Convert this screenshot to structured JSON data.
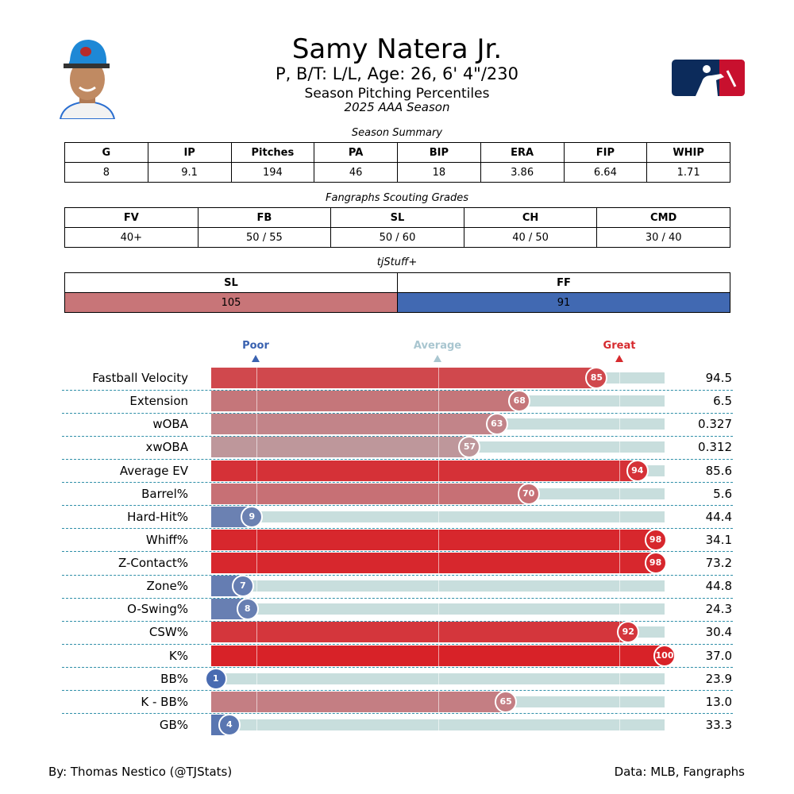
{
  "header": {
    "name": "Samy Natera Jr.",
    "info": "P, B/T: L/L, Age: 26, 6' 4\"/230",
    "subtitle": "Season Pitching Percentiles",
    "season": "2025 AAA Season"
  },
  "season_summary": {
    "title": "Season Summary",
    "headers": [
      "G",
      "IP",
      "Pitches",
      "PA",
      "BIP",
      "ERA",
      "FIP",
      "WHIP"
    ],
    "values": [
      "8",
      "9.1",
      "194",
      "46",
      "18",
      "3.86",
      "6.64",
      "1.71"
    ]
  },
  "scouting_grades": {
    "title": "Fangraphs Scouting Grades",
    "headers": [
      "FV",
      "FB",
      "SL",
      "CH",
      "CMD"
    ],
    "values": [
      "40+",
      "50 / 55",
      "50 / 60",
      "40 / 50",
      "30 / 40"
    ]
  },
  "tjstuff": {
    "title": "tjStuff+",
    "headers": [
      "SL",
      "FF"
    ],
    "values": [
      "105",
      "91"
    ],
    "colors": [
      "#c87578",
      "#4169b2"
    ]
  },
  "legend": {
    "poor": "Poor",
    "average": "Average",
    "great": "Great",
    "poor_color": "#3a62b0",
    "average_color": "#a9c6d0",
    "great_color": "#d62a2e"
  },
  "chart_data": {
    "type": "bar",
    "title": "Season Pitching Percentiles",
    "xlim": [
      0,
      100
    ],
    "reference_lines": [
      10,
      50,
      90
    ],
    "categories": [
      "Fastball Velocity",
      "Extension",
      "wOBA",
      "xwOBA",
      "Average EV",
      "Barrel%",
      "Hard-Hit%",
      "Whiff%",
      "Z-Contact%",
      "Zone%",
      "O-Swing%",
      "CSW%",
      "K%",
      "BB%",
      "K - BB%",
      "GB%"
    ],
    "percentiles": [
      85,
      68,
      63,
      57,
      94,
      70,
      9,
      98,
      98,
      7,
      8,
      92,
      100,
      1,
      65,
      4
    ],
    "stat_values": [
      "94.5",
      "6.5",
      "0.327",
      "0.312",
      "85.6",
      "5.6",
      "44.4",
      "34.1",
      "73.2",
      "44.8",
      "24.3",
      "30.4",
      "37.0",
      "23.9",
      "13.0",
      "33.3"
    ]
  },
  "footer": {
    "left": "By: Thomas Nestico (@TJStats)",
    "right": "Data: MLB, Fangraphs"
  }
}
